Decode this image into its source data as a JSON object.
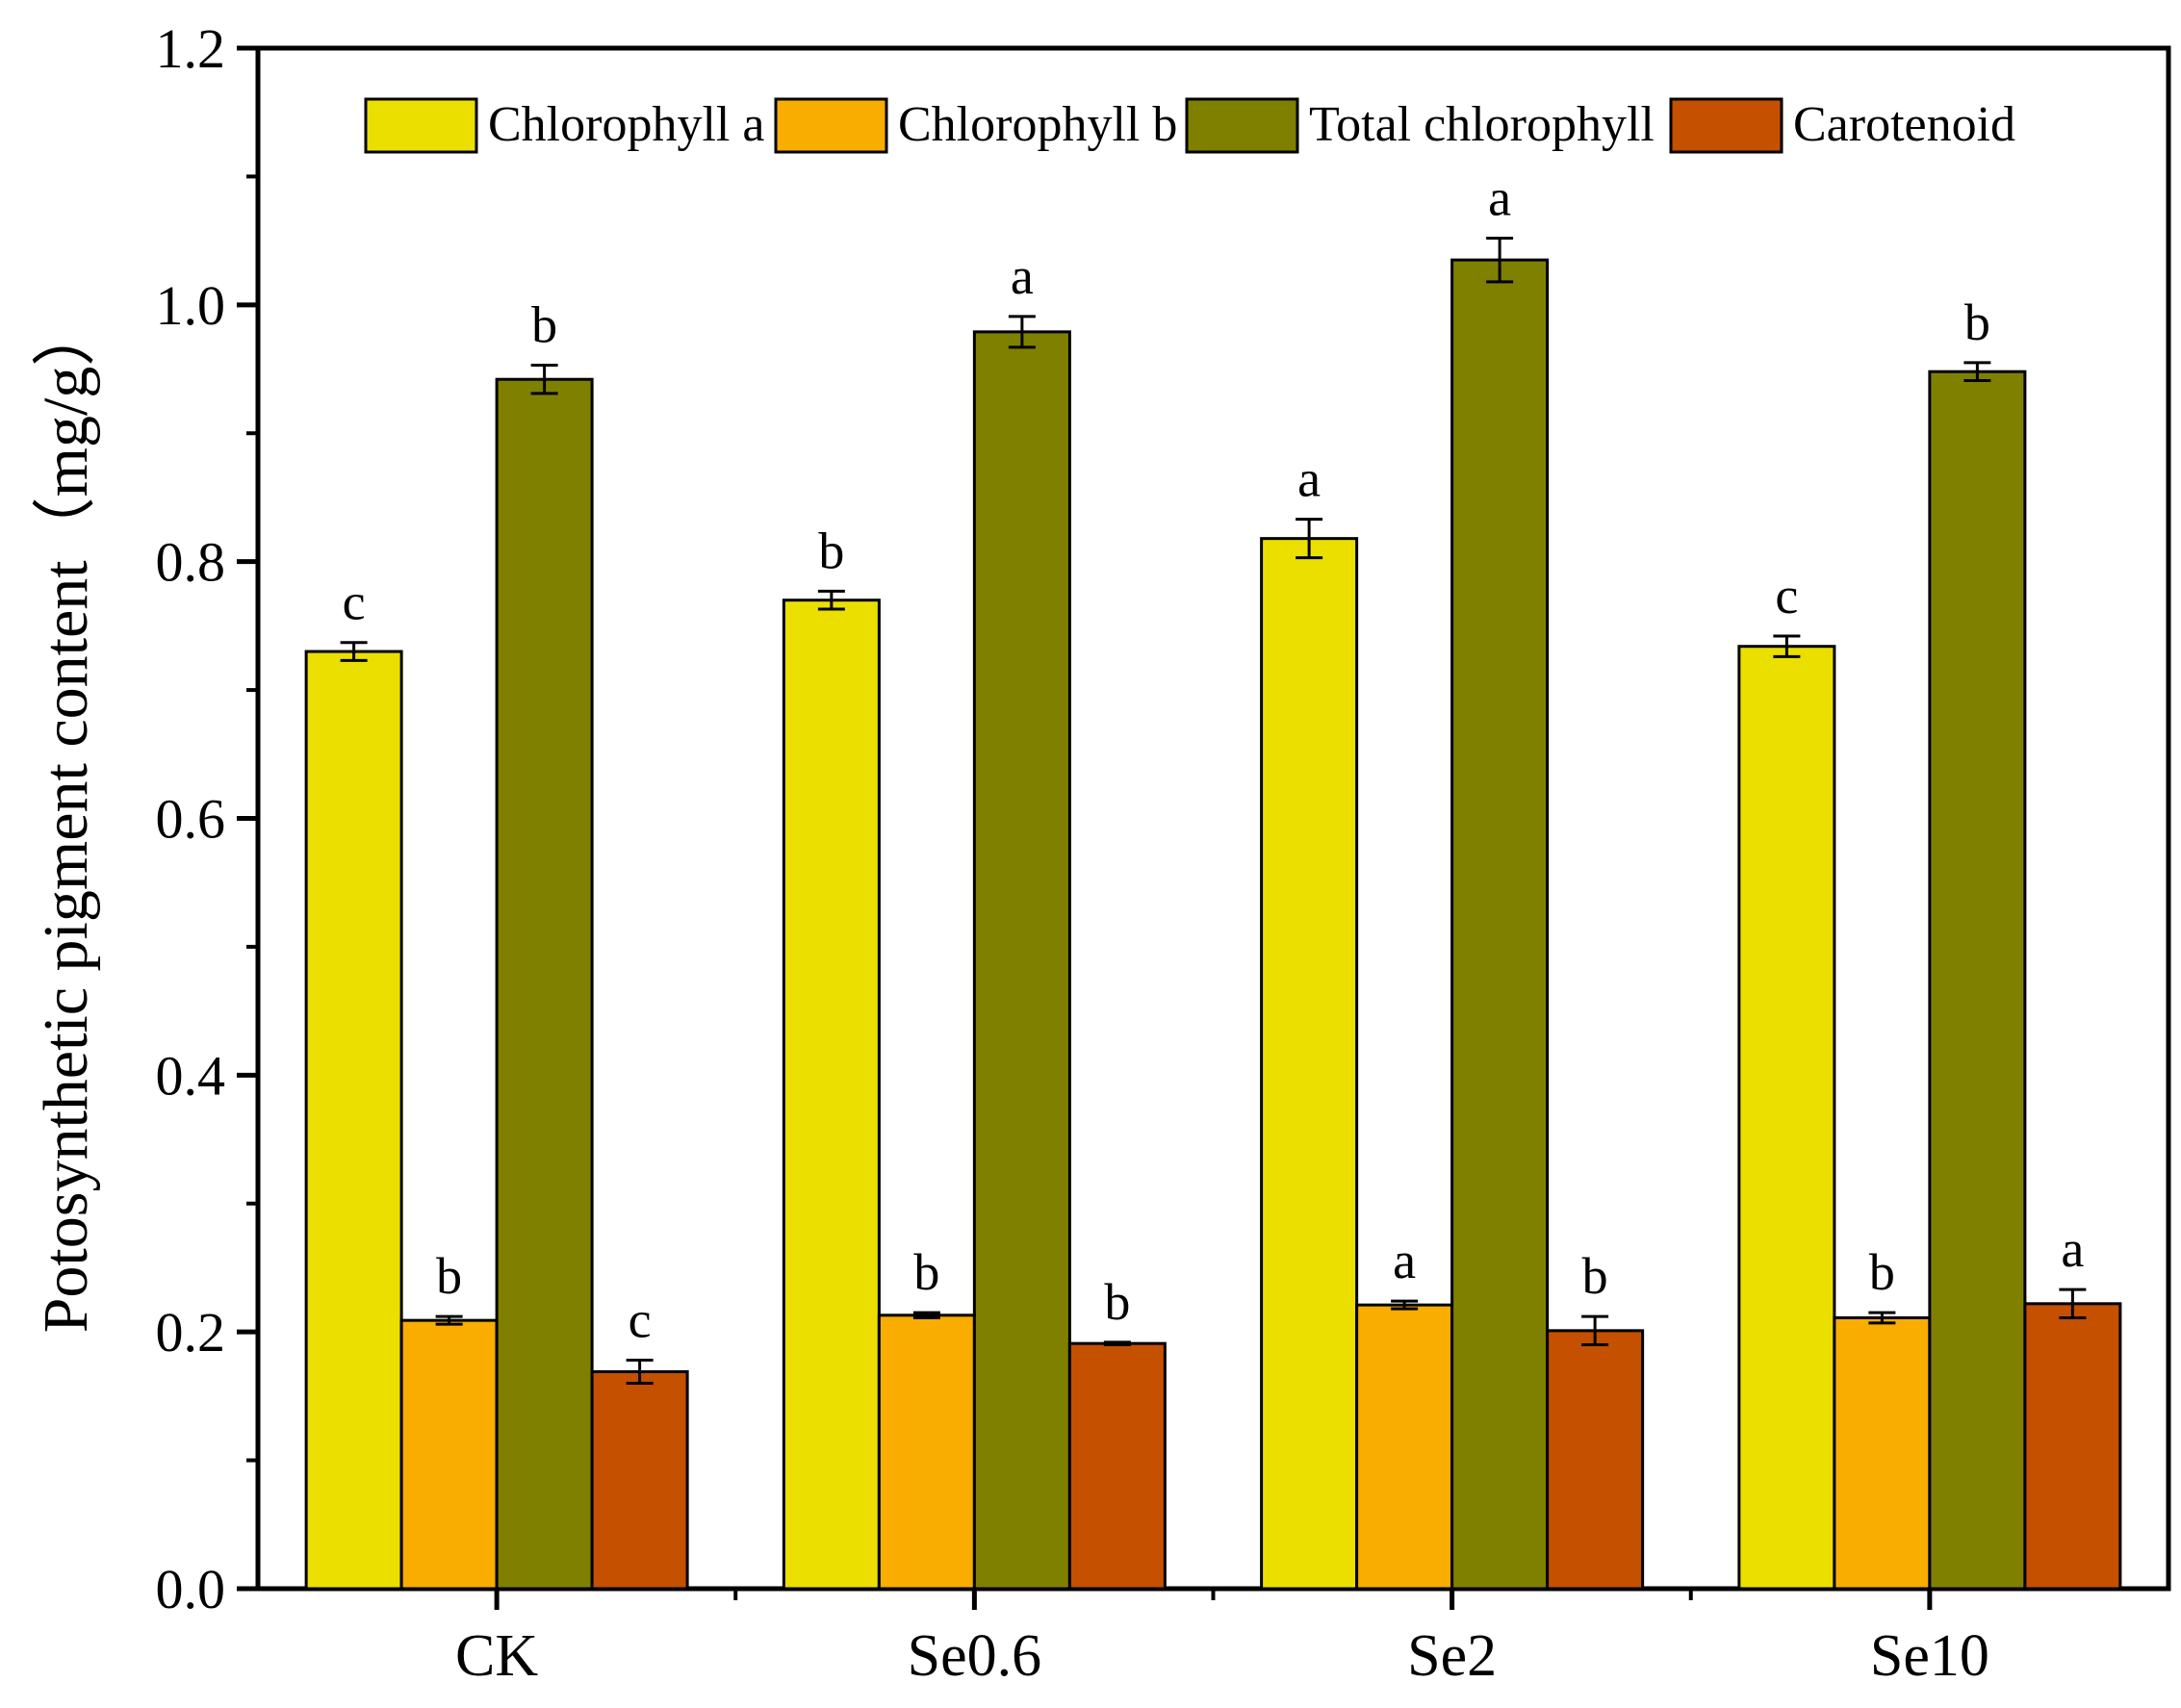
{
  "chart_data": {
    "type": "bar",
    "title": "",
    "xlabel": "",
    "ylabel": "Potosynthetic pigment content（mg/g）",
    "ylim": [
      0,
      1.2
    ],
    "y_ticks": [
      "0.0",
      "0.2",
      "0.4",
      "0.6",
      "0.8",
      "1.0",
      "1.2"
    ],
    "categories": [
      "CK",
      "Se0.6",
      "Se2",
      "Se10"
    ],
    "legend_position": "top",
    "series": [
      {
        "name": "Chlorophyll a",
        "color": "#ebdf00",
        "values": [
          0.73,
          0.77,
          0.818,
          0.734
        ],
        "errors": [
          0.007,
          0.007,
          0.015,
          0.008
        ],
        "letters": [
          "c",
          "b",
          "a",
          "c"
        ]
      },
      {
        "name": "Chlorophyll b",
        "color": "#f8ad00",
        "values": [
          0.209,
          0.213,
          0.221,
          0.211
        ],
        "errors": [
          0.003,
          0.002,
          0.003,
          0.004
        ],
        "letters": [
          "b",
          "b",
          "a",
          "b"
        ]
      },
      {
        "name": "Total chlorophyll",
        "color": "#808000",
        "values": [
          0.942,
          0.979,
          1.035,
          0.948
        ],
        "errors": [
          0.011,
          0.012,
          0.017,
          0.007
        ],
        "letters": [
          "b",
          "a",
          "a",
          "b"
        ]
      },
      {
        "name": "Carotenoid",
        "color": "#c45000",
        "values": [
          0.169,
          0.191,
          0.201,
          0.222
        ],
        "errors": [
          0.009,
          0.001,
          0.011,
          0.011
        ],
        "letters": [
          "c",
          "b",
          "b",
          "a"
        ]
      }
    ]
  }
}
